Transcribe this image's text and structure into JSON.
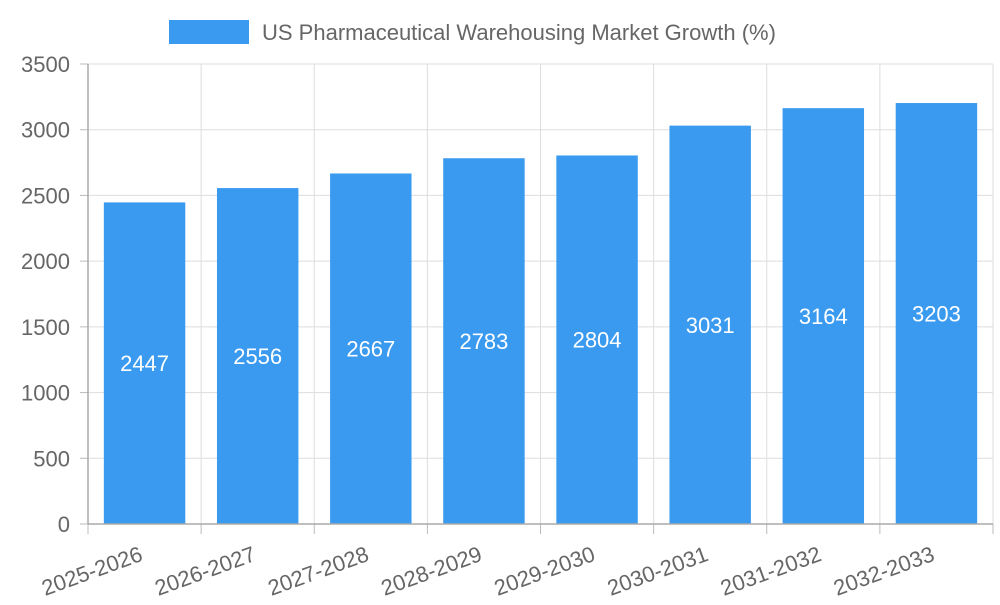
{
  "chart_data": {
    "type": "bar",
    "title": "",
    "xlabel": "",
    "ylabel": "",
    "categories": [
      "2025-2026",
      "2026-2027",
      "2027-2028",
      "2028-2029",
      "2029-2030",
      "2030-2031",
      "2031-2032",
      "2032-2033"
    ],
    "series": [
      {
        "name": "US Pharmaceutical Warehousing Market Growth (%)",
        "values": [
          2447,
          2556,
          2667,
          2783,
          2804,
          3031,
          3164,
          3203
        ],
        "color": "#3a9af0"
      }
    ],
    "ylim": [
      0,
      3500
    ],
    "yticks": [
      "0",
      "500",
      "1000",
      "1500",
      "2000",
      "2500",
      "3000",
      "3500"
    ],
    "data_labels": [
      "2447",
      "2556",
      "2667",
      "2783",
      "2804",
      "3031",
      "3164",
      "3203"
    ],
    "grid": true,
    "legend_position": "top"
  }
}
